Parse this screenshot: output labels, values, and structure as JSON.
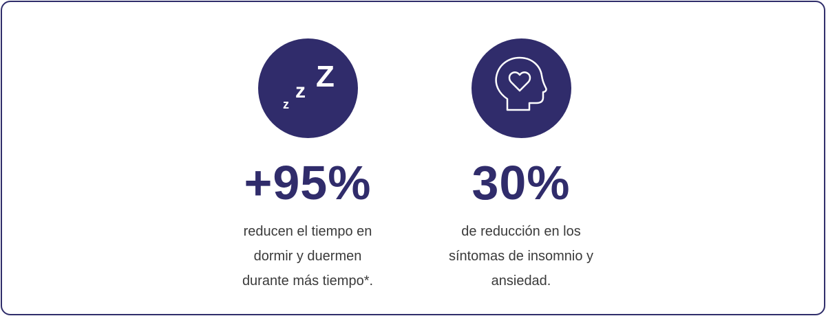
{
  "accent": "#302c6b",
  "stats": [
    {
      "icon": "sleep-zzz-icon",
      "value": "+95%",
      "lines": [
        "reducen el tiempo en",
        "dormir y duermen",
        "durante más tiempo*."
      ]
    },
    {
      "icon": "head-heart-icon",
      "value": "30%",
      "lines": [
        "de reducción en los",
        "síntomas de insomnio y",
        "ansiedad."
      ]
    }
  ]
}
